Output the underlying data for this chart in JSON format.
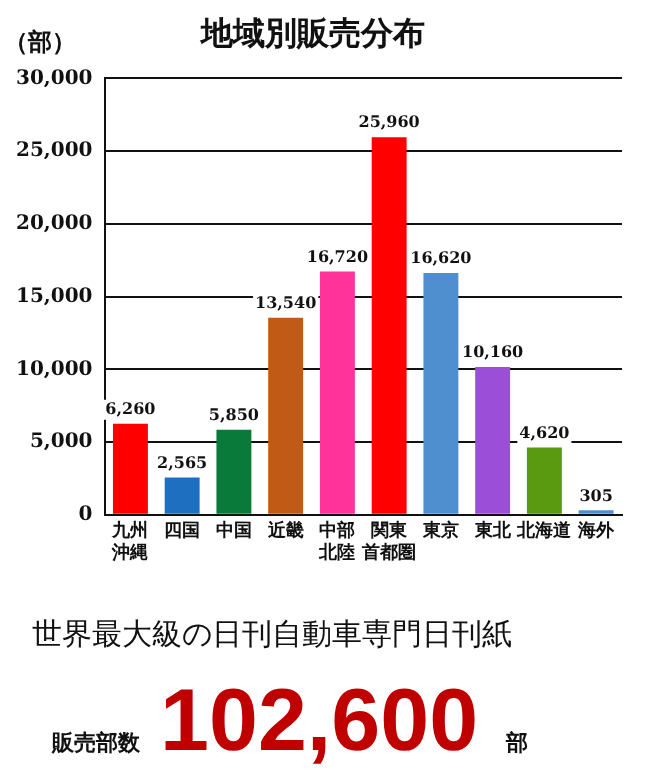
{
  "chart_data": {
    "type": "bar",
    "title": "地域別販売分布",
    "ylabel": "（部）",
    "categories": [
      "九州沖縄",
      "四国",
      "中国",
      "近畿",
      "中部北陸",
      "関東首都圏",
      "東京",
      "東北",
      "北海道",
      "海外"
    ],
    "values": [
      6260,
      2565,
      5850,
      13540,
      16720,
      25960,
      16620,
      10160,
      4620,
      305
    ],
    "colors": [
      "#ff0000",
      "#1f6fc0",
      "#0a7a3a",
      "#c05a14",
      "#ff3399",
      "#ff0000",
      "#4f8fd0",
      "#9b4fd8",
      "#5a9a10",
      "#4f8fd0"
    ],
    "ylim": [
      0,
      30000
    ],
    "yticks": [
      {
        "value": 0,
        "label": "0"
      },
      {
        "value": 5000,
        "label": "5,000"
      },
      {
        "value": 10000,
        "label": "10,000"
      },
      {
        "value": 15000,
        "label": "15,000"
      },
      {
        "value": 20000,
        "label": "20,000"
      },
      {
        "value": 25000,
        "label": "25,000"
      },
      {
        "value": 30000,
        "label": "30,000"
      }
    ],
    "grid": "y",
    "value_labels": [
      "6,260",
      "2,565",
      "5,850",
      "13,540",
      "16,720",
      "25,960",
      "16,620",
      "10,160",
      "4,620",
      "305"
    ],
    "annotations": [
      "世界最大級の日刊自動車専門日刊紙",
      "販売部数",
      "102,600",
      "部"
    ]
  }
}
